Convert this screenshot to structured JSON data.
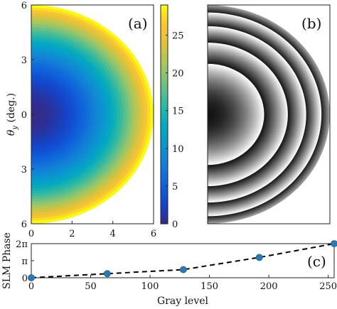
{
  "chart_data": [
    {
      "panel": "(a)",
      "type": "heatmap",
      "description_text": "",
      "xlim": [
        0,
        6
      ],
      "ylim": [
        -6,
        6
      ],
      "xticks": [
        "0",
        "2",
        "4",
        "6"
      ],
      "yticks": [
        "6",
        "3",
        "0",
        "3",
        "6"
      ],
      "ylabel": "θ_y (deg.)",
      "shape": "half-disk, radius 6",
      "colormap": "parula",
      "colorbar": {
        "range": [
          0,
          29
        ],
        "ticks": [
          "0",
          "5",
          "10",
          "15",
          "20",
          "25"
        ]
      },
      "value_model": "quadratic in radius: 0 at center, ~29 at edge"
    },
    {
      "panel": "(b)",
      "type": "heatmap",
      "shape": "half-disk, radius 6",
      "colormap": "gray",
      "value_model": "wrapped phase (mod 2π) of panel (a) — concentric rings"
    },
    {
      "panel": "(c)",
      "type": "line",
      "xlabel": "Gray level",
      "ylabel": "SLM Phase",
      "xlim": [
        0,
        255
      ],
      "ylim": [
        0,
        6.283
      ],
      "xticks": [
        "0",
        "50",
        "100",
        "150",
        "200",
        "250"
      ],
      "yticks": [
        "0",
        "π",
        "2π"
      ],
      "series": [
        {
          "x": [
            0,
            64,
            128,
            192,
            255
          ],
          "y": [
            0,
            0.75,
            1.5,
            3.75,
            6.28
          ]
        }
      ],
      "line_style": "dashed black",
      "marker_color": "#2a7ab8"
    }
  ],
  "colors": {
    "marker": "#2a7ab8",
    "dashed_line": "#000000",
    "axes": "#222222"
  }
}
